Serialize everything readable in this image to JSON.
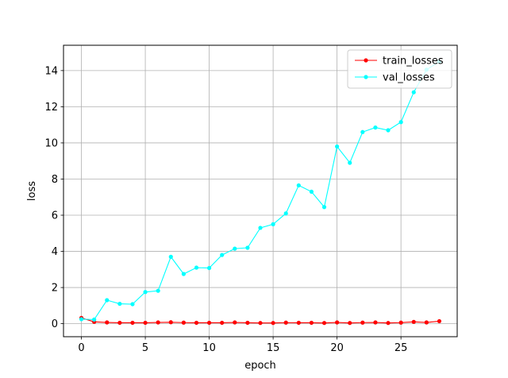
{
  "chart_data": {
    "type": "line",
    "title": "",
    "xlabel": "epoch",
    "ylabel": "loss",
    "xlim": [
      -1.4,
      29.4
    ],
    "ylim": [
      -0.72,
      15.4
    ],
    "xticks": [
      0,
      5,
      10,
      15,
      20,
      25
    ],
    "yticks": [
      0,
      2,
      4,
      6,
      8,
      10,
      12,
      14
    ],
    "grid": true,
    "legend_position": "top-right",
    "x": [
      0,
      1,
      2,
      3,
      4,
      5,
      6,
      7,
      8,
      9,
      10,
      11,
      12,
      13,
      14,
      15,
      16,
      17,
      18,
      19,
      20,
      21,
      22,
      23,
      24,
      25,
      26,
      27,
      28
    ],
    "series": [
      {
        "name": "train_losses",
        "color": "#ff0000",
        "values": [
          0.32,
          0.1,
          0.07,
          0.05,
          0.05,
          0.05,
          0.07,
          0.08,
          0.06,
          0.05,
          0.05,
          0.05,
          0.07,
          0.05,
          0.04,
          0.04,
          0.06,
          0.05,
          0.05,
          0.04,
          0.07,
          0.04,
          0.06,
          0.07,
          0.04,
          0.06,
          0.1,
          0.07,
          0.14
        ]
      },
      {
        "name": "val_losses",
        "color": "#00ffff",
        "values": [
          0.25,
          0.23,
          1.3,
          1.1,
          1.08,
          1.75,
          1.82,
          3.7,
          2.75,
          3.1,
          3.08,
          3.8,
          4.15,
          4.2,
          5.3,
          5.5,
          6.1,
          7.65,
          7.3,
          6.45,
          9.8,
          8.9,
          10.6,
          10.85,
          10.7,
          11.15,
          12.8,
          14.05,
          14.5
        ]
      }
    ]
  }
}
